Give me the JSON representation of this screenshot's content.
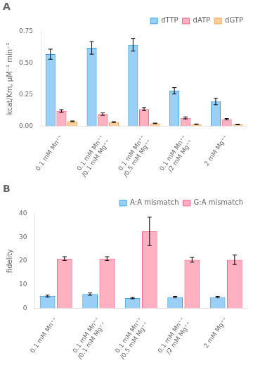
{
  "chart_data": [
    {
      "type": "bar",
      "title": "A",
      "categories": [
        "0.1 mM Mn⁺⁺",
        "0.1 mM Mn⁺⁺\n/0.1 mM Mg⁺⁺",
        "0.1 mM Mn⁺⁺\n/0.5 mM Mg⁺⁺",
        "0.1 mM Mn⁺⁺\n/2 mM Mg⁺⁺",
        "2 mM Mg⁺⁺"
      ],
      "series": [
        {
          "name": "dTTP",
          "values": [
            0.57,
            0.62,
            0.645,
            0.28,
            0.195
          ],
          "errors": [
            0.04,
            0.05,
            0.05,
            0.025,
            0.025
          ]
        },
        {
          "name": "dATP",
          "values": [
            0.12,
            0.095,
            0.135,
            0.065,
            0.055
          ],
          "errors": [
            0.01,
            0.01,
            0.012,
            0.008,
            0.005
          ]
        },
        {
          "name": "dGTP",
          "values": [
            0.038,
            0.032,
            0.022,
            0.015,
            0.013
          ],
          "errors": [
            0.003,
            0.003,
            0.002,
            0.002,
            0.002
          ]
        }
      ],
      "ylabel": "kcat/Km, μM⁻¹ min⁻¹",
      "ylim": [
        0,
        0.75
      ],
      "yticks": [
        {
          "value": 0,
          "label": "0.00"
        },
        {
          "value": 0.25,
          "label": "0.25"
        },
        {
          "value": 0.5,
          "label": "0.50"
        },
        {
          "value": 0.75,
          "label": "0.75"
        }
      ],
      "grid": false,
      "legend": "upper right"
    },
    {
      "type": "bar",
      "title": "B",
      "categories": [
        "0.1 mM Mn⁺⁺",
        "0.1 mM Mn⁺⁺\n/0.1 mM Mg⁺⁺",
        "0.1 mM Mn⁺⁺\n/0.5 mM Mg⁺⁺",
        "0.1 mM Mn⁺⁺\n/2 mM Mg⁺⁺",
        "2 mM Mg⁺⁺"
      ],
      "series": [
        {
          "name": "A:A mismatch",
          "values": [
            5.2,
            6.0,
            4.3,
            4.7,
            4.7
          ],
          "errors": [
            0.4,
            0.5,
            0.3,
            0.3,
            0.3
          ]
        },
        {
          "name": "G:A mismatch",
          "values": [
            21.0,
            21.0,
            32.5,
            20.5,
            20.5
          ],
          "errors": [
            0.8,
            0.8,
            6.0,
            1.0,
            2.0
          ]
        }
      ],
      "ylabel": "fidelity",
      "ylim": [
        0,
        40
      ],
      "yticks": [
        0,
        10,
        20,
        30,
        40
      ],
      "grid": false,
      "legend": "upper right"
    }
  ]
}
